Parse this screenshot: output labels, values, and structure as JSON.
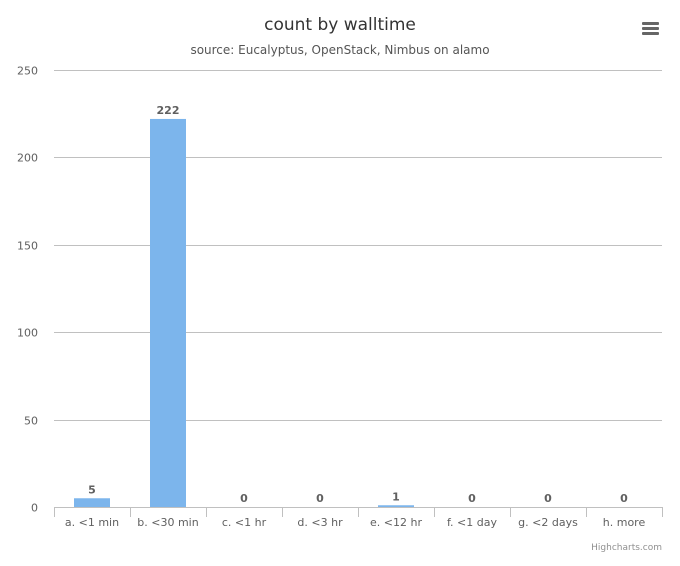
{
  "title": "count by walltime",
  "subtitle": "source: Eucalyptus, OpenStack, Nimbus on alamo",
  "menu_icon": "hamburger-menu-icon",
  "credits": "Highcharts.com",
  "colors": {
    "bar": "#7cb5ec",
    "grid": "#c0c0c0",
    "axis_text": "#606060",
    "data_label": "#606060"
  },
  "chart_data": {
    "type": "bar",
    "categories": [
      "a. <1 min",
      "b. <30 min",
      "c. <1 hr",
      "d. <3 hr",
      "e. <12 hr",
      "f. <1 day",
      "g. <2 days",
      "h. more"
    ],
    "values": [
      5,
      222,
      0,
      0,
      1,
      0,
      0,
      0
    ],
    "yticks": [
      0,
      50,
      100,
      150,
      200,
      250
    ],
    "ylim": [
      0,
      250
    ],
    "grid": true,
    "data_labels": true,
    "legend": "none"
  }
}
